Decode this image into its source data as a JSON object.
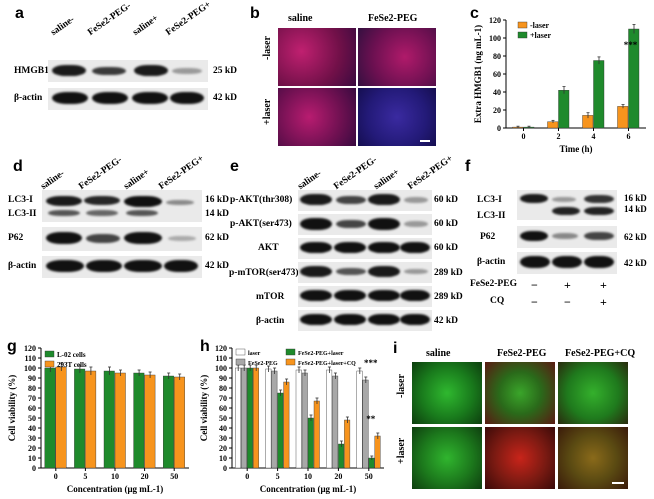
{
  "panels": {
    "a": {
      "label": "a",
      "cols": [
        "saline-",
        "FeSe2-PEG-",
        "saline+",
        "FeSe2-PEG+"
      ],
      "rows": [
        {
          "name": "HMGB1",
          "size": "25 kD"
        },
        {
          "name": "β-actin",
          "size": "42 kD"
        }
      ]
    },
    "b": {
      "label": "b",
      "cols": [
        "saline",
        "FeSe2-PEG"
      ],
      "rows": [
        "-laser",
        "+laser"
      ]
    },
    "c": {
      "label": "c"
    },
    "d": {
      "label": "d",
      "cols": [
        "saline-",
        "FeSe2-PEG-",
        "saline+",
        "FeSe2-PEG+"
      ],
      "rows": [
        {
          "name": "LC3-I",
          "size": "16 kD"
        },
        {
          "name": "LC3-II",
          "size": "14 kD"
        },
        {
          "name": "P62",
          "size": "62 kD"
        },
        {
          "name": "β-actin",
          "size": "42 kD"
        }
      ]
    },
    "e": {
      "label": "e",
      "cols": [
        "saline-",
        "FeSe2-PEG-",
        "saline+",
        "FeSe2-PEG+"
      ],
      "rows": [
        {
          "name": "p-AKT(thr308)",
          "size": "60 kD"
        },
        {
          "name": "p-AKT(ser473)",
          "size": "60 kD"
        },
        {
          "name": "AKT",
          "size": "60 kD"
        },
        {
          "name": "p-mTOR(ser473)",
          "size": "289 kD"
        },
        {
          "name": "mTOR",
          "size": "289 kD"
        },
        {
          "name": "β-actin",
          "size": "42 kD"
        }
      ]
    },
    "f": {
      "label": "f",
      "rows": [
        {
          "name": "LC3-I",
          "size": "16 kD"
        },
        {
          "name": "LC3-II",
          "size": "14 kD"
        },
        {
          "name": "P62",
          "size": "62 kD"
        },
        {
          "name": "β-actin",
          "size": "42 kD"
        }
      ],
      "conditions": [
        {
          "name": "FeSe2-PEG",
          "marks": [
            "−",
            "+",
            "+"
          ]
        },
        {
          "name": "CQ",
          "marks": [
            "−",
            "−",
            "+"
          ]
        }
      ]
    },
    "g": {
      "label": "g"
    },
    "h": {
      "label": "h"
    },
    "i": {
      "label": "i",
      "cols": [
        "saline",
        "FeSe2-PEG",
        "FeSe2-PEG+CQ"
      ],
      "rows": [
        "-laser",
        "+laser"
      ]
    }
  },
  "chart_data": [
    {
      "id": "c",
      "type": "bar",
      "ylabel": "Extra HMGB1 (ng mL-1)",
      "xlabel": "Time (h)",
      "categories": [
        "0",
        "2",
        "4",
        "6"
      ],
      "ylim": [
        0,
        120
      ],
      "yticks": [
        0,
        20,
        40,
        60,
        80,
        100,
        120
      ],
      "legend": "top-left",
      "series": [
        {
          "name": "-laser",
          "color": "#f7941d",
          "values": [
            1,
            7,
            14,
            24
          ],
          "errors": [
            1,
            1.5,
            3,
            2
          ]
        },
        {
          "name": "+laser",
          "color": "#1f8a2c",
          "values": [
            1,
            42,
            75,
            110
          ],
          "errors": [
            1,
            4,
            4,
            5
          ]
        }
      ],
      "annotations": [
        {
          "category": "6",
          "text": "***"
        }
      ]
    },
    {
      "id": "g",
      "type": "bar",
      "ylabel": "Cell viability (%)",
      "xlabel": "Concentration (μg mL-1)",
      "categories": [
        "0",
        "5",
        "10",
        "20",
        "50"
      ],
      "ylim": [
        0,
        120
      ],
      "yticks": [
        0,
        10,
        20,
        30,
        40,
        50,
        60,
        70,
        80,
        90,
        100,
        110,
        120
      ],
      "legend": "top-left",
      "series": [
        {
          "name": "L-02 cells",
          "color": "#1f8a2c",
          "values": [
            100,
            99,
            97,
            95,
            92
          ],
          "errors": [
            4,
            4,
            4,
            3,
            3
          ]
        },
        {
          "name": "293T cells",
          "color": "#f7941d",
          "values": [
            101,
            97,
            95,
            93,
            91
          ],
          "errors": [
            4,
            4,
            3,
            3,
            3
          ]
        }
      ]
    },
    {
      "id": "h",
      "type": "bar",
      "ylabel": "Cell viability (%)",
      "xlabel": "Concentration (μg mL-1)",
      "categories": [
        "0",
        "5",
        "10",
        "20",
        "50"
      ],
      "ylim": [
        0,
        120
      ],
      "yticks": [
        0,
        10,
        20,
        30,
        40,
        50,
        60,
        70,
        80,
        90,
        100,
        110,
        120
      ],
      "legend": "top",
      "series": [
        {
          "name": "laser",
          "color": "#ffffff",
          "values": [
            100,
            99,
            98,
            98,
            97
          ],
          "errors": [
            3,
            3,
            3,
            3,
            3
          ]
        },
        {
          "name": "FeSe2-PEG",
          "color": "#a8a8a8",
          "values": [
            100,
            97,
            95,
            92,
            88
          ],
          "errors": [
            3,
            3,
            3,
            3,
            3
          ]
        },
        {
          "name": "FeSe2-PEG+laser",
          "color": "#1f8a2c",
          "values": [
            100,
            75,
            50,
            24,
            10
          ],
          "errors": [
            3,
            3,
            3,
            3,
            2
          ]
        },
        {
          "name": "FeSe2-PEG+laser+CQ",
          "color": "#f7941d",
          "values": [
            100,
            86,
            67,
            48,
            32
          ],
          "errors": [
            3,
            3,
            3,
            3,
            3
          ]
        }
      ],
      "annotations": [
        {
          "category": "50",
          "text": "***"
        },
        {
          "category": "50",
          "text": "**"
        }
      ]
    }
  ]
}
